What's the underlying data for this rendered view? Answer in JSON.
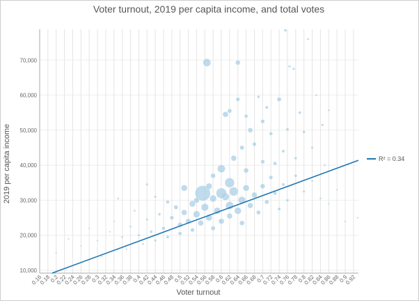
{
  "chart_data": {
    "type": "scatter",
    "title": "Voter turnout, 2019 per capita income, and total votes",
    "x_label": "Voter turnout",
    "y_label": "2019 per capita income",
    "xlim": [
      0.16,
      0.932
    ],
    "ylim": [
      9200,
      78800
    ],
    "xticks": [
      0.16,
      0.18,
      0.2,
      0.22,
      0.24,
      0.26,
      0.28,
      0.3,
      0.32,
      0.34,
      0.36,
      0.38,
      0.4,
      0.42,
      0.44,
      0.46,
      0.48,
      0.5,
      0.52,
      0.54,
      0.56,
      0.58,
      0.6,
      0.62,
      0.64,
      0.66,
      0.68,
      0.7,
      0.72,
      0.74,
      0.76,
      0.78,
      0.8,
      0.82,
      0.84,
      0.86,
      0.88,
      0.9,
      0.92
    ],
    "yticks": [
      {
        "value": 10000,
        "label": "10,000"
      },
      {
        "value": 20000,
        "label": "20,000"
      },
      {
        "value": 30000,
        "label": "30,000"
      },
      {
        "value": 40000,
        "label": "40,000"
      },
      {
        "value": 50000,
        "label": "50,000"
      },
      {
        "value": 60000,
        "label": "60,000"
      },
      {
        "value": 70000,
        "label": "70,000"
      }
    ],
    "grid": true,
    "series": [
      {
        "color": "#a9cfe6",
        "x": [
          0.565,
          0.64,
          0.755,
          0.81,
          0.765,
          0.775,
          0.64,
          0.69,
          0.61,
          0.62,
          0.66,
          0.71,
          0.74,
          0.79,
          0.845,
          0.86,
          0.83,
          0.67,
          0.7,
          0.72,
          0.76,
          0.8,
          0.555,
          0.62,
          0.6,
          0.51,
          0.42,
          0.35,
          0.58,
          0.65,
          0.68,
          0.63,
          0.66,
          0.7,
          0.73,
          0.75,
          0.78,
          0.82,
          0.85,
          0.88,
          0.9,
          0.93,
          0.86,
          0.2,
          0.23,
          0.26,
          0.28,
          0.3,
          0.31,
          0.33,
          0.34,
          0.36,
          0.37,
          0.38,
          0.39,
          0.4,
          0.41,
          0.42,
          0.43,
          0.44,
          0.45,
          0.46,
          0.47,
          0.48,
          0.49,
          0.5,
          0.5,
          0.51,
          0.52,
          0.53,
          0.53,
          0.54,
          0.55,
          0.56,
          0.57,
          0.58,
          0.58,
          0.59,
          0.6,
          0.61,
          0.62,
          0.62,
          0.63,
          0.64,
          0.65,
          0.65,
          0.66,
          0.67,
          0.68,
          0.69,
          0.7,
          0.71,
          0.72,
          0.73,
          0.74,
          0.75,
          0.76,
          0.78,
          0.8,
          0.82,
          0.84,
          0.6,
          0.54,
          0.57,
          0.47,
          0.44
        ],
        "values": [
          69300,
          69300,
          78500,
          76000,
          68200,
          67500,
          58800,
          59500,
          54500,
          55500,
          54000,
          56500,
          58800,
          55000,
          51500,
          55700,
          60000,
          50000,
          52500,
          49000,
          50200,
          49500,
          32000,
          35000,
          39000,
          33500,
          34500,
          30500,
          37000,
          45000,
          46000,
          42000,
          38500,
          41000,
          40500,
          44000,
          42000,
          45000,
          40000,
          33000,
          24000,
          25000,
          29000,
          15000,
          19000,
          17000,
          22000,
          18500,
          14000,
          21000,
          24000,
          19500,
          16000,
          22500,
          27000,
          20000,
          17500,
          24500,
          21000,
          18500,
          26000,
          22000,
          19500,
          25000,
          28000,
          23000,
          20500,
          26500,
          24000,
          29000,
          21500,
          26000,
          23500,
          28000,
          25000,
          30500,
          22000,
          27000,
          24000,
          31000,
          28500,
          25500,
          32500,
          27000,
          30000,
          23500,
          33500,
          28500,
          31500,
          26500,
          34000,
          29500,
          36500,
          32000,
          27500,
          34500,
          30000,
          37000,
          32500,
          35500,
          30500,
          32000,
          30000,
          34000,
          29500,
          31000
        ],
        "sizes": [
          40000,
          15000,
          5000,
          3000,
          4000,
          4000,
          10000,
          5000,
          20000,
          12000,
          8000,
          6000,
          12000,
          5000,
          4000,
          3000,
          3000,
          15000,
          10000,
          8000,
          6000,
          5000,
          150000,
          60000,
          40000,
          25000,
          4000,
          3000,
          15000,
          12000,
          10000,
          20000,
          15000,
          10000,
          8000,
          6000,
          5000,
          4000,
          3000,
          2000,
          2000,
          2000,
          2000,
          1500,
          1500,
          1500,
          1500,
          2000,
          1500,
          2000,
          2000,
          3000,
          2000,
          3000,
          3000,
          4000,
          3000,
          4000,
          5000,
          4000,
          5000,
          8000,
          6000,
          10000,
          12000,
          15000,
          8000,
          20000,
          18000,
          25000,
          10000,
          30000,
          20000,
          35000,
          25000,
          30000,
          12000,
          30000,
          20000,
          35000,
          40000,
          20000,
          50000,
          30000,
          35000,
          15000,
          25000,
          20000,
          20000,
          12000,
          15000,
          12000,
          10000,
          8000,
          6000,
          6000,
          5000,
          5000,
          4000,
          3000,
          3000,
          70000,
          20000,
          25000,
          8000,
          4000
        ]
      }
    ],
    "trendline": {
      "name": "R² = 0.34",
      "color": "#1f77b4",
      "x": [
        0.19,
        0.932
      ],
      "values": [
        9200,
        41400
      ]
    }
  }
}
